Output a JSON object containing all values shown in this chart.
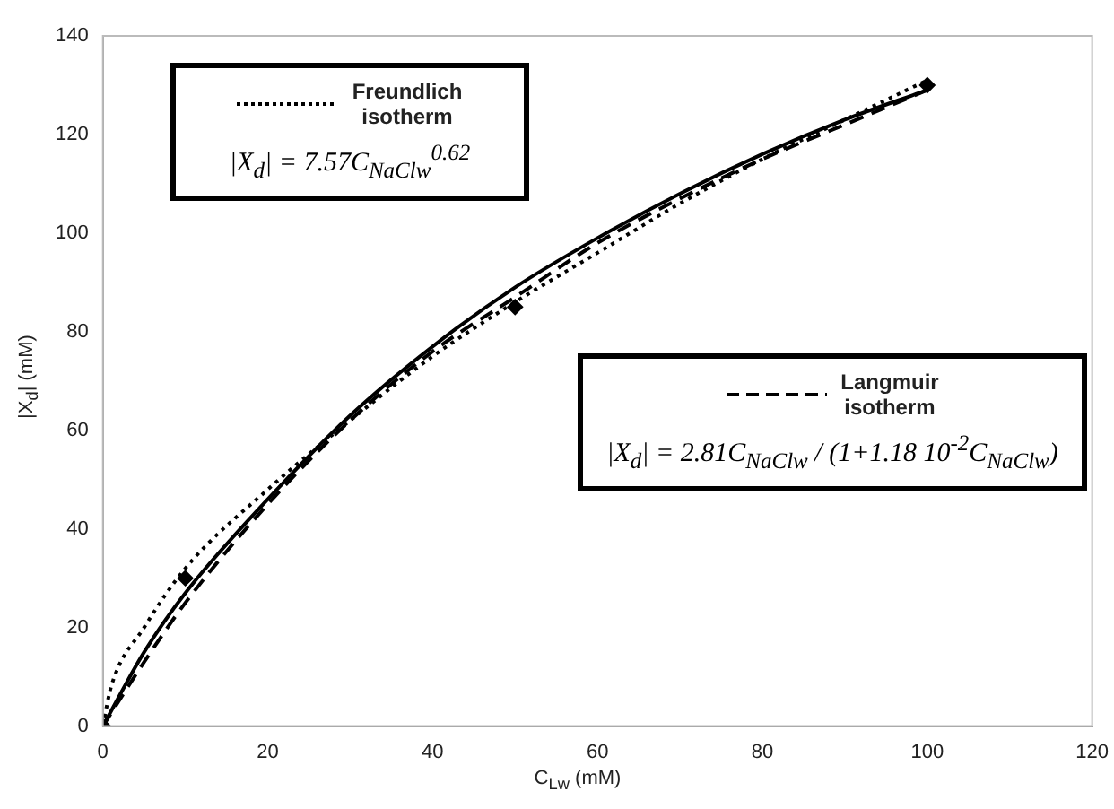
{
  "chart_data": {
    "type": "scatter",
    "xlabel": "C$_{Lw}$ (mM)",
    "ylabel": "|X$_{d}$| (mM)",
    "xlim": [
      0,
      120
    ],
    "xticks": [
      0,
      20,
      40,
      60,
      80,
      100,
      120
    ],
    "ylim": [
      0,
      140
    ],
    "yticks": [
      0,
      20,
      40,
      60,
      80,
      100,
      120,
      140
    ],
    "grid": false,
    "legend": "top right",
    "series": [
      {
        "type": "scatter",
        "marker": "diamond",
        "color": "#000000",
        "x": [
          0,
          10,
          50,
          100
        ],
        "values": [
          0,
          30,
          85,
          130
        ]
      },
      {
        "type": "line",
        "marker": "none",
        "line_style": "solid",
        "color": "#000000",
        "x": [
          0,
          5,
          10,
          20,
          30,
          40,
          50,
          60,
          70,
          80,
          90,
          100
        ],
        "values": [
          0,
          15,
          27,
          46,
          63,
          77,
          89,
          99,
          108,
          116,
          123,
          129
        ]
      },
      {
        "type": "line",
        "name": "Freundlich isotherm",
        "marker": "none",
        "line_style": "dotted",
        "color": "#000000",
        "x": [
          0,
          1,
          5,
          10,
          20,
          30,
          40,
          50,
          60,
          70,
          80,
          90,
          100
        ],
        "values": [
          0,
          8,
          20,
          32,
          48,
          62,
          75,
          86,
          96,
          106,
          115,
          123,
          131
        ]
      },
      {
        "type": "line",
        "name": "Langmuir isotherm",
        "marker": "none",
        "line_style": "dashed",
        "color": "#000000",
        "x": [
          0,
          5,
          10,
          20,
          30,
          40,
          50,
          60,
          70,
          80,
          90,
          100
        ],
        "values": [
          0,
          13,
          25,
          45,
          62,
          76,
          87,
          98,
          107,
          115,
          122,
          129
        ]
      }
    ],
    "annotations": [
      "|X$_{d}$| = 7.57C$_{NaClw}$$^{0.62}$",
      "|X$_{d}$| = 2.81C$_{NaClw}$ / (1+1.18 10$^{-2}$C$_{NaClw}$)"
    ]
  }
}
